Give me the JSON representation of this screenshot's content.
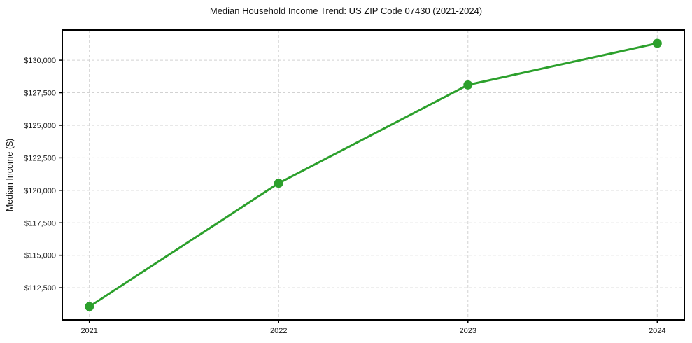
{
  "chart_data": {
    "type": "line",
    "title": "Median Household Income Trend: US ZIP Code 07430 (2021-2024)",
    "xlabel": "",
    "ylabel": "Median Income ($)",
    "x": [
      2021,
      2022,
      2023,
      2024
    ],
    "series": [
      {
        "name": "Median Household Income",
        "values": [
          111050,
          120550,
          128100,
          131300
        ]
      }
    ],
    "x_tick_labels": [
      "2021",
      "2022",
      "2023",
      "2024"
    ],
    "y_ticks": [
      112500,
      115000,
      117500,
      120000,
      122500,
      125000,
      127500,
      130000
    ],
    "y_tick_labels": [
      "$112,500",
      "$115,000",
      "$117,500",
      "$120,000",
      "$122,500",
      "$125,000",
      "$127,500",
      "$130,000"
    ],
    "xlim": [
      2020.857,
      2024.143
    ],
    "ylim": [
      110030,
      132320
    ],
    "grid": true,
    "legend": "none",
    "line_color": "#2ca02c",
    "marker": "circle",
    "grid_color": "#d2d2d2",
    "axis_color": "#000000"
  }
}
